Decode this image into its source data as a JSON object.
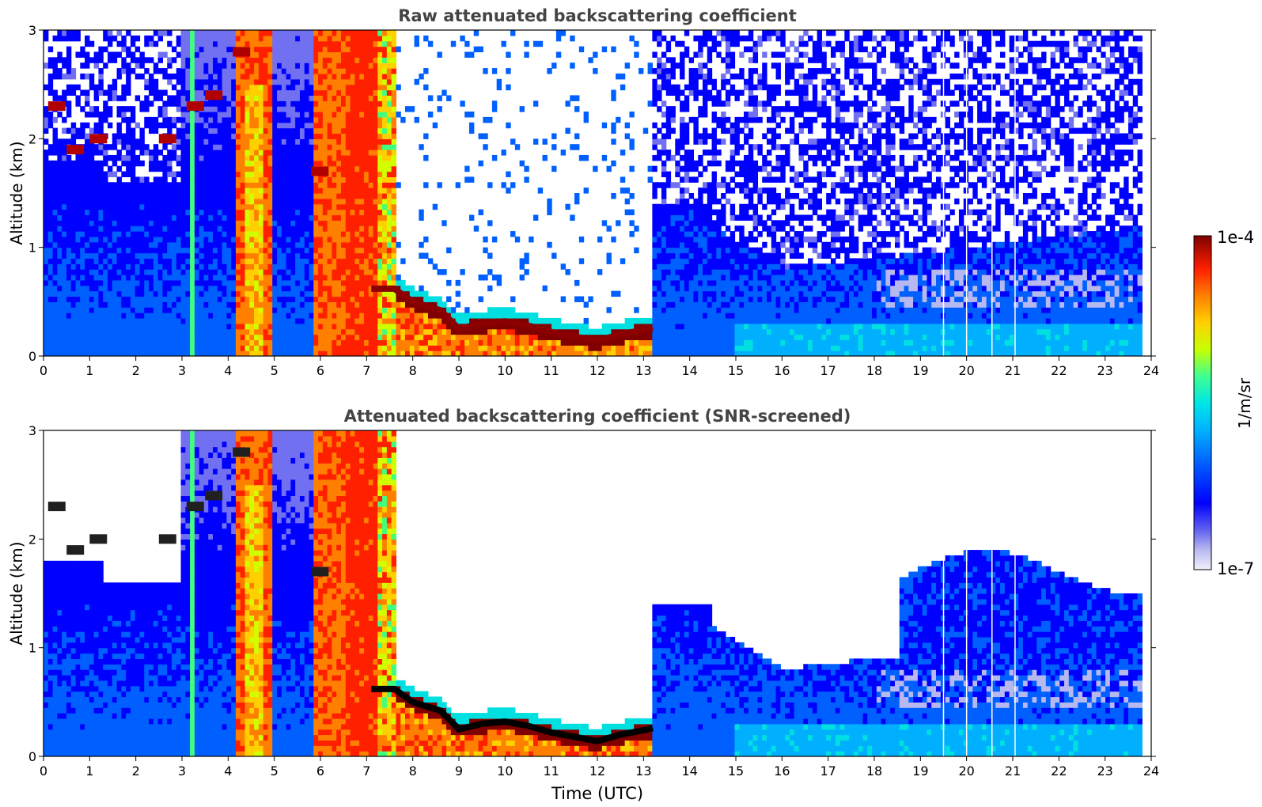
{
  "chart_data": [
    {
      "type": "heatmap",
      "title": "Raw attenuated backscattering coefficient",
      "xlabel": "",
      "ylabel": "Altitude (km)",
      "xlim": [
        0,
        24
      ],
      "ylim": [
        0,
        3
      ],
      "xticks": [
        "0",
        "1",
        "2",
        "3",
        "4",
        "5",
        "6",
        "7",
        "8",
        "9",
        "10",
        "11",
        "12",
        "13",
        "14",
        "15",
        "16",
        "17",
        "18",
        "19",
        "20",
        "21",
        "22",
        "23",
        "24"
      ],
      "yticks": [
        "0",
        "1",
        "2",
        "3"
      ],
      "grid": false,
      "screened": false,
      "cloud_base_km": [
        [
          7.1,
          0.62
        ],
        [
          7.6,
          0.62
        ],
        [
          8.0,
          0.5
        ],
        [
          8.6,
          0.42
        ],
        [
          9.0,
          0.25
        ],
        [
          9.5,
          0.3
        ],
        [
          10.0,
          0.32
        ],
        [
          10.5,
          0.28
        ],
        [
          11.0,
          0.22
        ],
        [
          11.5,
          0.18
        ],
        [
          12.0,
          0.14
        ],
        [
          12.5,
          0.2
        ],
        [
          13.0,
          0.24
        ],
        [
          13.2,
          0.26
        ]
      ],
      "upper_layers_km": [
        [
          0.1,
          2.3
        ],
        [
          0.5,
          1.9
        ],
        [
          1.0,
          2.0
        ],
        [
          2.5,
          2.0
        ],
        [
          3.1,
          2.3
        ],
        [
          3.5,
          2.4
        ],
        [
          4.1,
          2.8
        ],
        [
          5.8,
          1.7
        ]
      ]
    },
    {
      "type": "heatmap",
      "title": "Attenuated backscattering coefficient (SNR-screened)",
      "xlabel": "Time (UTC)",
      "ylabel": "Altitude (km)",
      "xlim": [
        0,
        24
      ],
      "ylim": [
        0,
        3
      ],
      "xticks": [
        "0",
        "1",
        "2",
        "3",
        "4",
        "5",
        "6",
        "7",
        "8",
        "9",
        "10",
        "11",
        "12",
        "13",
        "14",
        "15",
        "16",
        "17",
        "18",
        "19",
        "20",
        "21",
        "22",
        "23",
        "24"
      ],
      "yticks": [
        "0",
        "1",
        "2",
        "3"
      ],
      "grid": false,
      "screened": true,
      "cloud_base_km": [
        [
          7.1,
          0.62
        ],
        [
          7.6,
          0.62
        ],
        [
          8.0,
          0.5
        ],
        [
          8.6,
          0.42
        ],
        [
          9.0,
          0.25
        ],
        [
          9.5,
          0.3
        ],
        [
          10.0,
          0.32
        ],
        [
          10.5,
          0.28
        ],
        [
          11.0,
          0.22
        ],
        [
          11.5,
          0.18
        ],
        [
          12.0,
          0.14
        ],
        [
          12.5,
          0.2
        ],
        [
          13.0,
          0.24
        ],
        [
          13.2,
          0.26
        ]
      ],
      "upper_layers_km": [
        [
          0.1,
          2.3
        ],
        [
          0.5,
          1.9
        ],
        [
          1.0,
          2.0
        ],
        [
          2.5,
          2.0
        ],
        [
          3.1,
          2.3
        ],
        [
          3.5,
          2.4
        ],
        [
          4.1,
          2.8
        ],
        [
          5.8,
          1.7
        ]
      ]
    }
  ],
  "colorbar": {
    "label": "1/m/sr",
    "max_label": "1e-4",
    "min_label": "1e-7",
    "scale": "log",
    "range": [
      1e-07,
      0.0001
    ],
    "colors": [
      "#e8e8f8",
      "#b8b8f0",
      "#7070f0",
      "#0000ff",
      "#0060ff",
      "#00b0ff",
      "#00e0e0",
      "#40ff80",
      "#d0ff00",
      "#ffd000",
      "#ff8000",
      "#ff2000",
      "#c00000",
      "#800000"
    ]
  }
}
